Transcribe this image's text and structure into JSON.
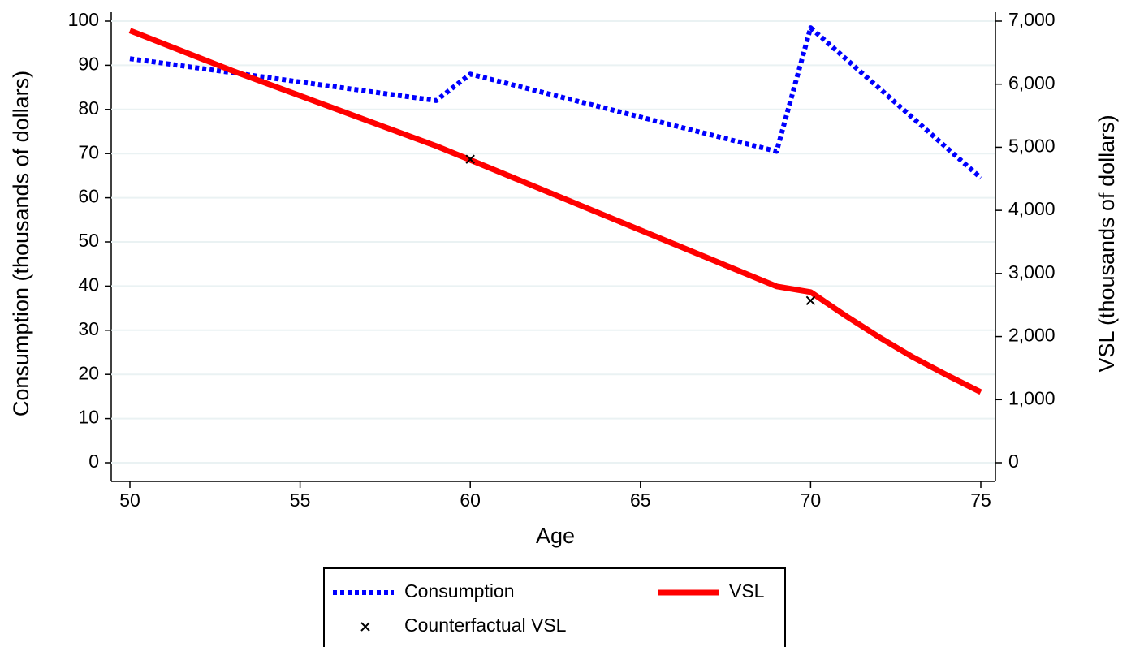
{
  "chart_data": {
    "type": "line",
    "xlabel": "Age",
    "ylabel": "Consumption (thousands of dollars)",
    "y2label": "VSL (thousands of dollars)",
    "xlim": [
      50,
      75
    ],
    "xticks": [
      50,
      55,
      60,
      65,
      70,
      75
    ],
    "ylim": [
      0,
      100
    ],
    "yticks": [
      0,
      10,
      20,
      30,
      40,
      50,
      60,
      70,
      80,
      90,
      100
    ],
    "y2lim": [
      0,
      7000
    ],
    "y2ticks": [
      0,
      {
        "value": 1000,
        "label": "1,000"
      },
      {
        "value": 2000,
        "label": "2,000"
      },
      {
        "value": 3000,
        "label": "3,000"
      },
      {
        "value": 4000,
        "label": "4,000"
      },
      {
        "value": 5000,
        "label": "5,000"
      },
      {
        "value": 6000,
        "label": "6,000"
      },
      {
        "value": 7000,
        "label": "7,000"
      }
    ],
    "grid": true,
    "legend": "bottom",
    "series": [
      {
        "name": "Consumption",
        "color": "#0000ff",
        "style": "dotted",
        "axis": "y",
        "x": [
          50,
          59,
          60,
          69,
          70,
          75
        ],
        "values": [
          91.5,
          82,
          88,
          70.5,
          98.5,
          64.5
        ]
      },
      {
        "name": "VSL",
        "color": "#ff0000",
        "style": "solid",
        "axis": "y2",
        "x": [
          50,
          53,
          59,
          60,
          69,
          70,
          71,
          72,
          73,
          74,
          75
        ],
        "values": [
          6850,
          6215,
          5020,
          4800,
          2795,
          2705,
          2340,
          1995,
          1675,
          1390,
          1120
        ]
      },
      {
        "name": "Counterfactual VSL",
        "color": "#000000",
        "style": "markers",
        "axis": "y2",
        "x": [
          60,
          70
        ],
        "values": [
          4810,
          2570
        ]
      }
    ]
  }
}
